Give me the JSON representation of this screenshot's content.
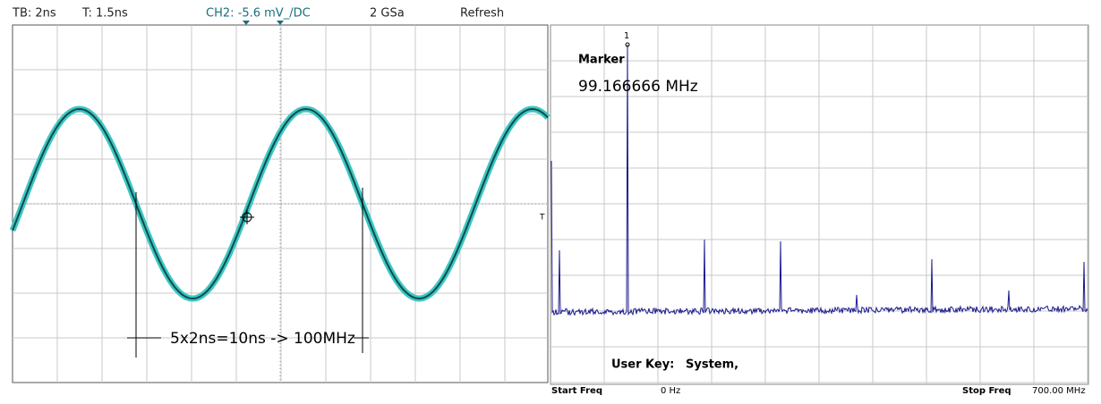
{
  "header": {
    "timebase": "TB: 2ns",
    "trigger": "T: 1.5ns",
    "channel": "CH2: -5.6 mV_/DC",
    "sample_rate": "2 GSa",
    "mode": "Refresh"
  },
  "scope": {
    "annotation": "5x2ns=10ns -> 100MHz",
    "trigger_marker": "T"
  },
  "spectrum": {
    "marker_number": "1",
    "marker_title": "Marker",
    "marker_value": "99.166666 MHz",
    "user_key_label": "User Key:",
    "user_key_value": "System,",
    "start_label": "Start Freq",
    "start_value": "0 Hz",
    "stop_label": "Stop Freq",
    "stop_value": "700.00 MHz"
  }
}
